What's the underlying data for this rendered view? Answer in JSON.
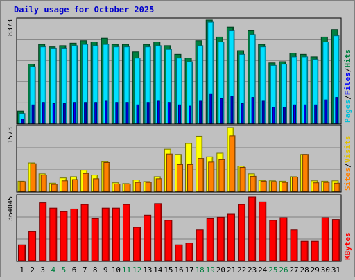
{
  "chart_data": {
    "type": "bar",
    "title": "Daily usage for October 2025",
    "categories": [
      "1",
      "2",
      "3",
      "4",
      "5",
      "6",
      "7",
      "8",
      "9",
      "10",
      "11",
      "12",
      "13",
      "14",
      "15",
      "16",
      "17",
      "18",
      "19",
      "20",
      "21",
      "22",
      "23",
      "24",
      "25",
      "26",
      "27",
      "28",
      "29",
      "30",
      "31"
    ],
    "weekend_days": [
      4,
      5,
      11,
      12,
      18,
      19,
      25,
      26
    ],
    "panels": [
      {
        "name": "pages-files-hits",
        "max_label": "8373",
        "ymax": 8373,
        "ylabel_parts": [
          "Pages",
          "/",
          "Files",
          "/",
          "Hits"
        ],
        "series": [
          {
            "name": "Hits",
            "color": "#008040",
            "values": [
              1000,
              4800,
              6400,
              6200,
              6300,
              6500,
              6700,
              6600,
              6900,
              6400,
              6400,
              5800,
              6400,
              6600,
              6300,
              5600,
              5300,
              6700,
              8373,
              7000,
              7800,
              5900,
              7500,
              6400,
              4900,
              5000,
              5700,
              5600,
              5400,
              7000,
              7600
            ]
          },
          {
            "name": "Files",
            "color": "#00e0ff",
            "values": [
              800,
              4600,
              6200,
              6100,
              6100,
              6300,
              6400,
              6300,
              6400,
              6200,
              6200,
              5300,
              6200,
              6300,
              6000,
              5300,
              5000,
              6300,
              8200,
              6600,
              7500,
              5600,
              7200,
              6200,
              4700,
              4800,
              5400,
              5400,
              5200,
              6600,
              7100
            ]
          },
          {
            "name": "Pages",
            "color": "#0000ff",
            "values": [
              350,
              1500,
              1700,
              1600,
              1600,
              1700,
              1700,
              1700,
              1800,
              1700,
              1700,
              1500,
              1700,
              1800,
              1700,
              1500,
              1400,
              1800,
              2400,
              2000,
              2200,
              1600,
              2100,
              1800,
              1300,
              1300,
              1500,
              1500,
              1500,
              1900,
              2100
            ]
          }
        ]
      },
      {
        "name": "visits-sites",
        "max_label": "1573",
        "ymax": 1573,
        "ylabel_parts": [
          "Sites",
          "/",
          "Visits"
        ],
        "series": [
          {
            "name": "Visits",
            "color": "#ffff00",
            "values": [
              250,
              700,
              430,
              200,
              330,
              360,
              520,
              400,
              730,
              210,
              190,
              280,
              240,
              360,
              1040,
              910,
              1180,
              1360,
              850,
              940,
              1573,
              620,
              430,
              270,
              260,
              250,
              360,
              910,
              260,
              250,
              260
            ]
          },
          {
            "name": "Sites",
            "color": "#ff8000",
            "values": [
              240,
              680,
              400,
              170,
              260,
              290,
              440,
              310,
              710,
              180,
              180,
              220,
              220,
              310,
              920,
              660,
              660,
              810,
              720,
              780,
              1370,
              590,
              370,
              250,
              240,
              220,
              350,
              910,
              210,
              220,
              200
            ]
          }
        ]
      },
      {
        "name": "kbytes",
        "max_label": "364045",
        "ymax": 364045,
        "ylabel_parts": [
          "KBytes"
        ],
        "series": [
          {
            "name": "KBytes",
            "color": "#ff0000",
            "values": [
              90000,
              165000,
              330000,
              300000,
              280000,
              295000,
              320000,
              240000,
              300000,
              300000,
              320000,
              190000,
              260000,
              325000,
              230000,
              90000,
              100000,
              175000,
              240000,
              248000,
              265000,
              320000,
              364045,
              335000,
              230000,
              245000,
              175000,
              110000,
              110000,
              245000,
              235000
            ]
          }
        ]
      }
    ]
  }
}
